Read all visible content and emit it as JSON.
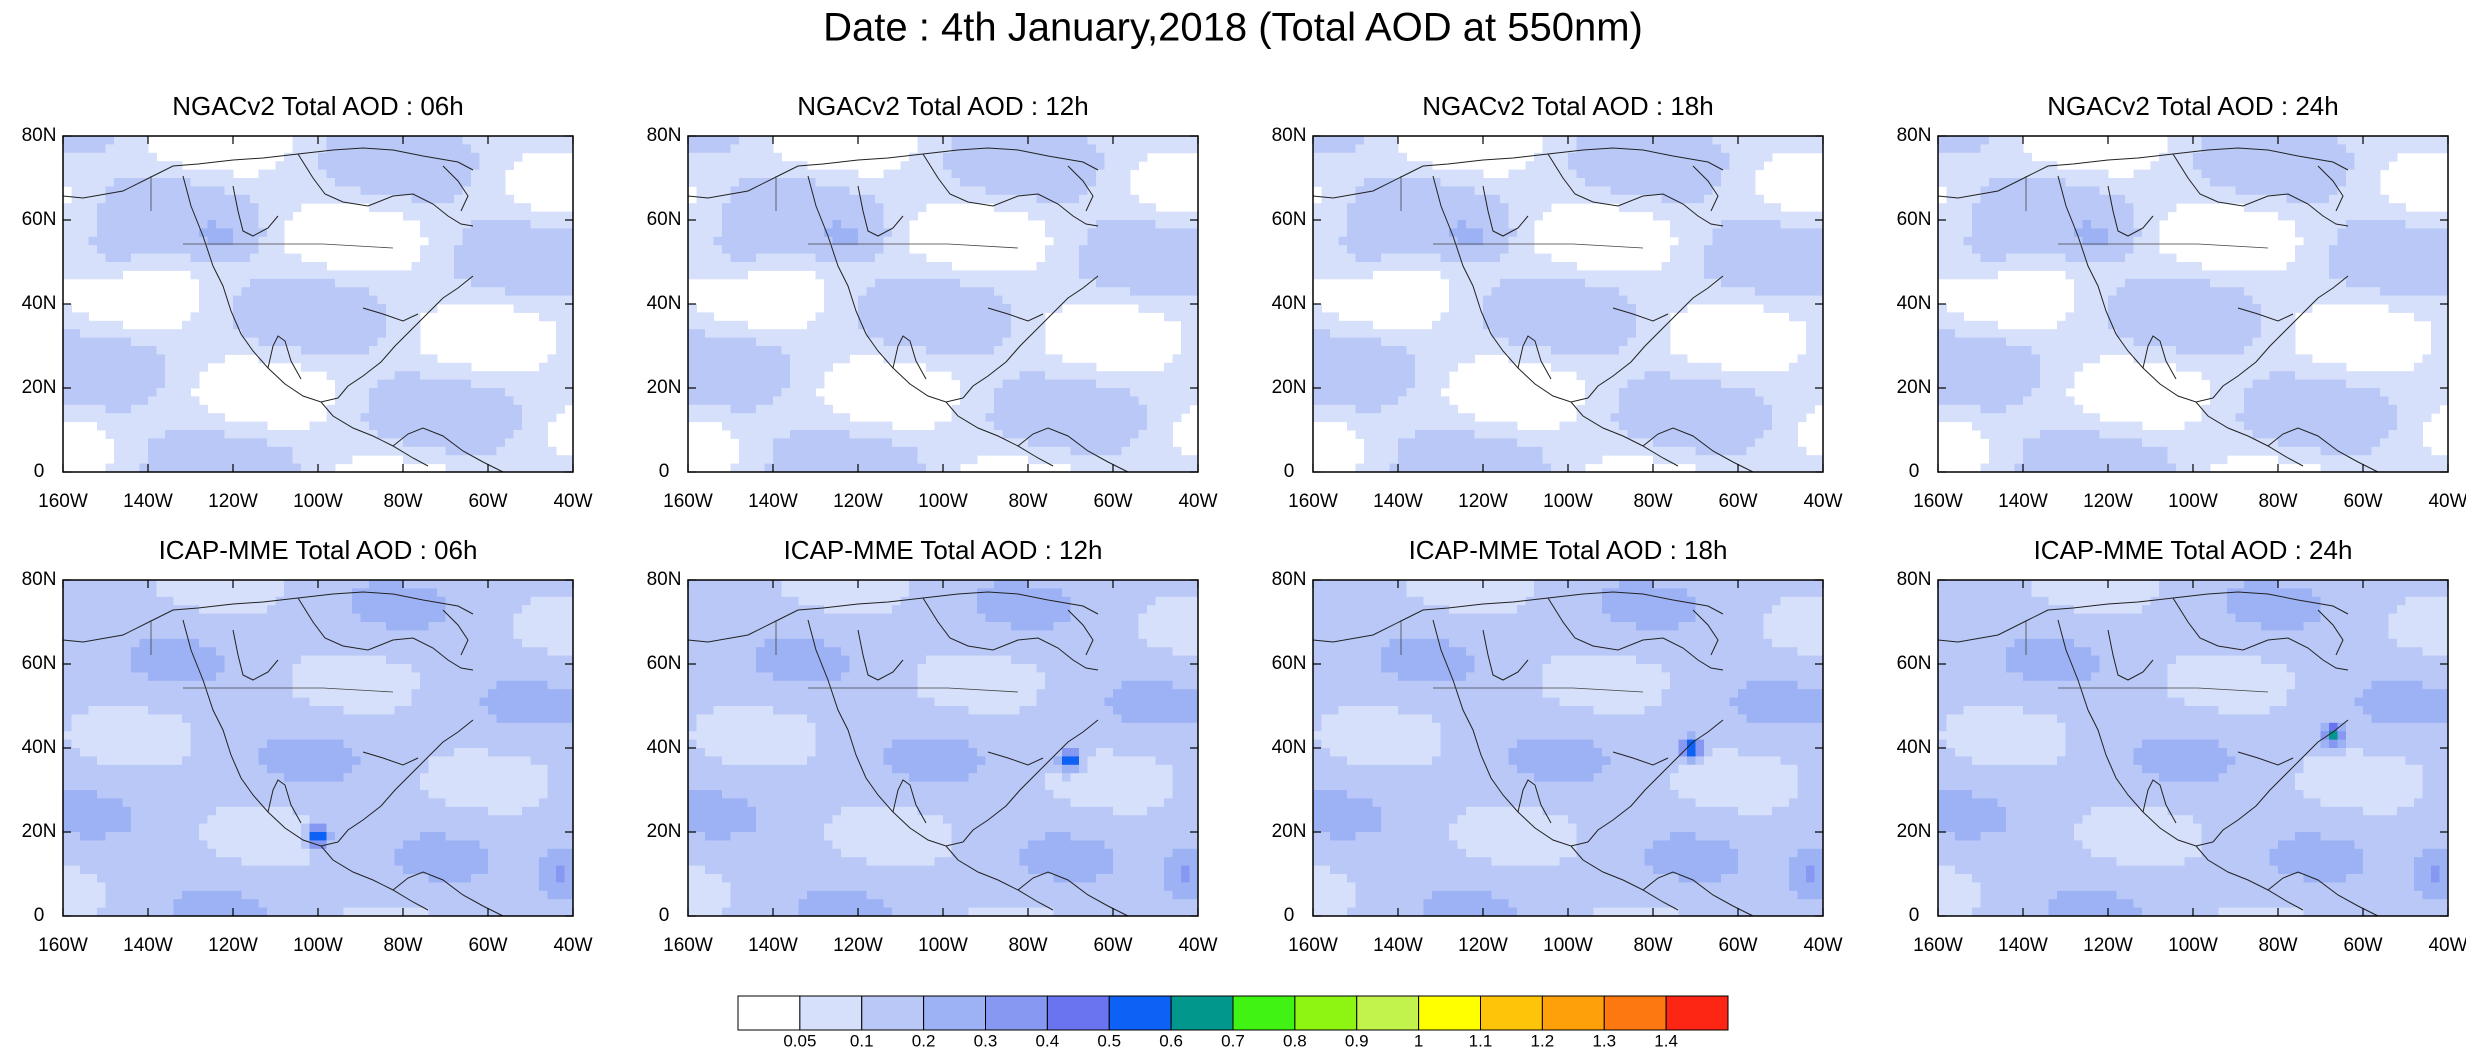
{
  "figure": {
    "title": "Date : 4th January,2018 (Total AOD at 550nm)"
  },
  "lat_labels": [
    "80N",
    "60N",
    "40N",
    "20N",
    "0"
  ],
  "lon_labels": [
    "160W",
    "140W",
    "120W",
    "100W",
    "80W",
    "60W",
    "40W"
  ],
  "lon_range": [
    -160,
    -40
  ],
  "lat_range": [
    0,
    80
  ],
  "panels": [
    {
      "title": "NGACv2 Total AOD : 06h",
      "model": "ngac"
    },
    {
      "title": "NGACv2 Total AOD : 12h",
      "model": "ngac"
    },
    {
      "title": "NGACv2 Total AOD : 18h",
      "model": "ngac"
    },
    {
      "title": "NGACv2 Total AOD : 24h",
      "model": "ngac"
    },
    {
      "title": "ICAP-MME Total AOD : 06h",
      "model": "icap",
      "hotspot": [
        -100,
        19
      ]
    },
    {
      "title": "ICAP-MME Total AOD : 12h",
      "model": "icap",
      "hotspot": [
        -70,
        37
      ]
    },
    {
      "title": "ICAP-MME Total AOD : 18h",
      "model": "icap",
      "hotspot": [
        -71,
        40
      ]
    },
    {
      "title": "ICAP-MME Total AOD : 24h",
      "model": "icap",
      "hotspot": [
        -67,
        43
      ]
    }
  ],
  "colorbar": {
    "labels": [
      "0.05",
      "0.1",
      "0.2",
      "0.3",
      "0.4",
      "0.5",
      "0.6",
      "0.7",
      "0.8",
      "0.9",
      "1",
      "1.1",
      "1.2",
      "1.3",
      "1.4"
    ],
    "colors": [
      "#ffffff",
      "#d7e0fb",
      "#b9c8f7",
      "#9cb2f5",
      "#8798f3",
      "#6a73f0",
      "#0d62f5",
      "#01978d",
      "#41f312",
      "#8df511",
      "#c2f34c",
      "#ffff00",
      "#fdc40a",
      "#fda00a",
      "#fd7811",
      "#fd2513"
    ]
  }
}
